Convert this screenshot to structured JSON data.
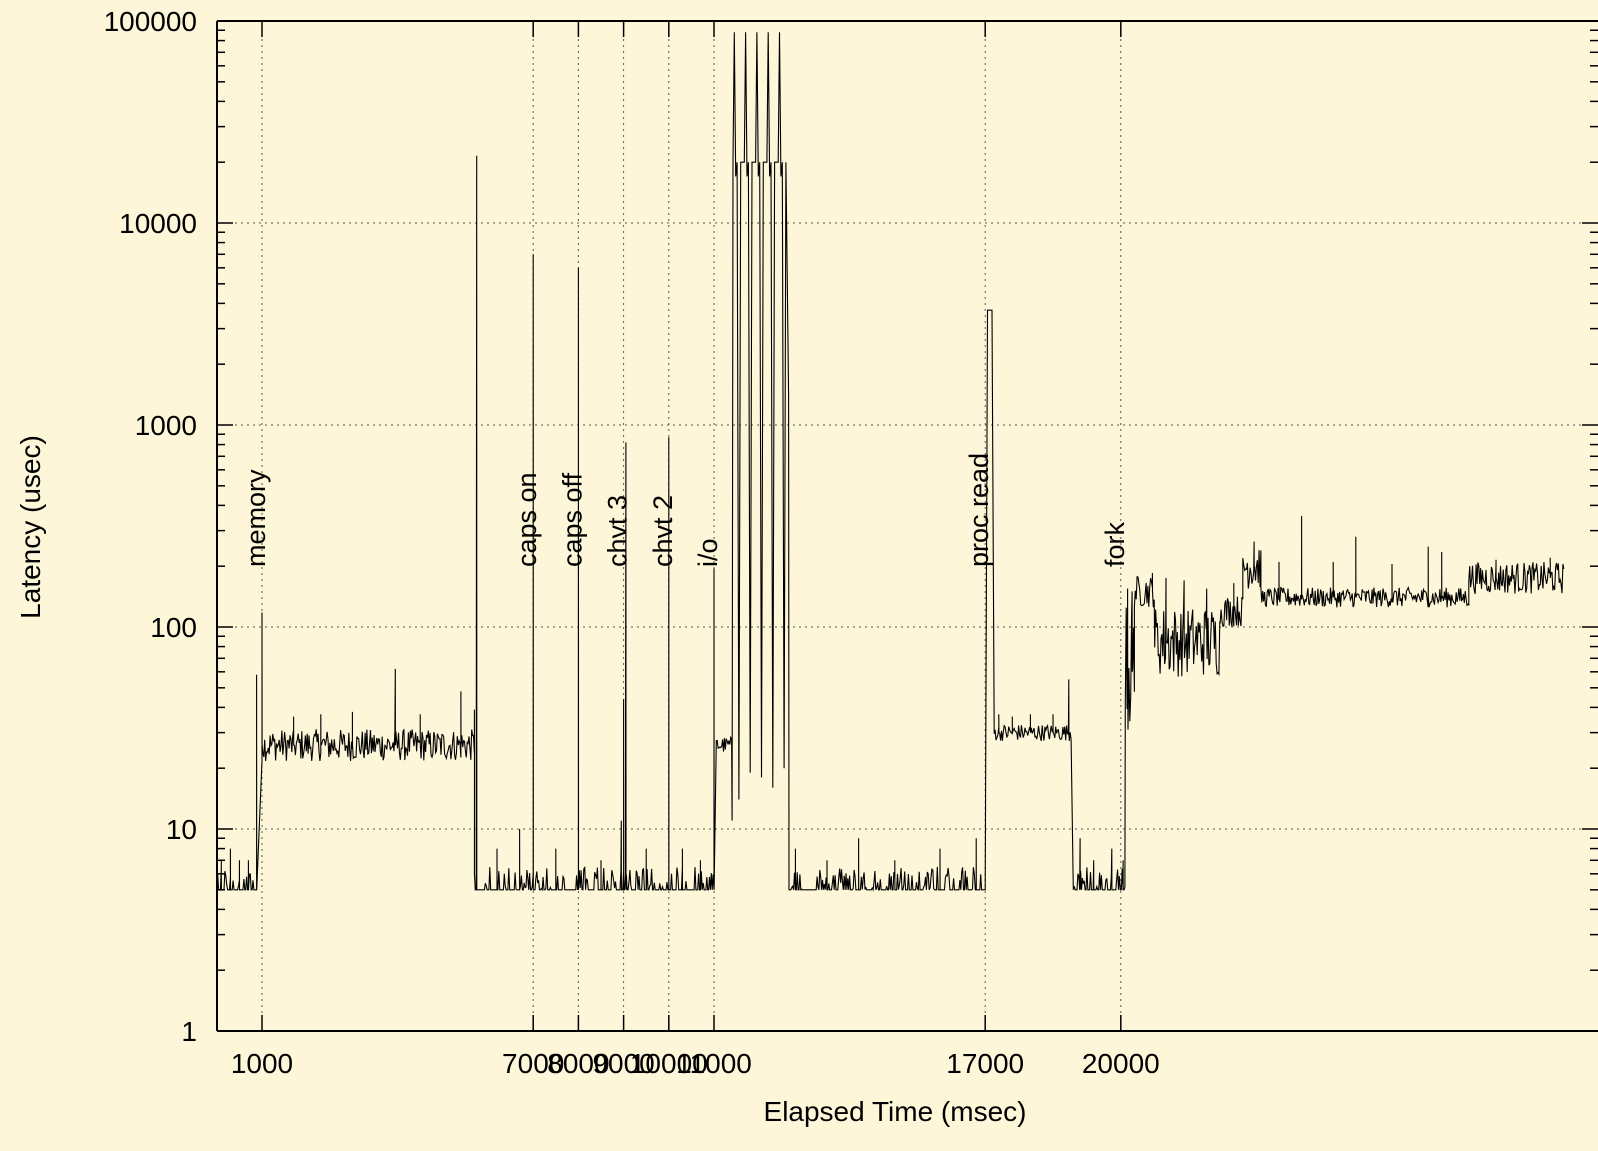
{
  "chart_data": {
    "type": "line",
    "title": "",
    "xlabel": "Elapsed Time (msec)",
    "ylabel": "Latency (usec)",
    "yscale": "log",
    "ylim": [
      1,
      100000
    ],
    "xlim": [
      0,
      29800
    ],
    "grid": true,
    "x_ticks": [
      {
        "value": 1000,
        "label": "1000"
      },
      {
        "value": 7000,
        "label": "7000"
      },
      {
        "value": 8000,
        "label": "8000"
      },
      {
        "value": 9000,
        "label": "9000"
      },
      {
        "value": 10000,
        "label": "10000"
      },
      {
        "value": 11000,
        "label": "11000"
      },
      {
        "value": 17000,
        "label": "17000"
      },
      {
        "value": 20000,
        "label": "20000"
      }
    ],
    "y_ticks": [
      {
        "value": 1,
        "label": "1"
      },
      {
        "value": 10,
        "label": "10"
      },
      {
        "value": 100,
        "label": "100"
      },
      {
        "value": 1000,
        "label": "1000"
      },
      {
        "value": 10000,
        "label": "10000"
      },
      {
        "value": 100000,
        "label": "100000"
      }
    ],
    "annotations": [
      {
        "x": 1000,
        "text": "memory"
      },
      {
        "x": 7000,
        "text": "caps on"
      },
      {
        "x": 8000,
        "text": "caps off"
      },
      {
        "x": 9000,
        "text": "chvt 3"
      },
      {
        "x": 10000,
        "text": "chvt 2"
      },
      {
        "x": 11000,
        "text": "i/o"
      },
      {
        "x": 17000,
        "text": "proc read"
      },
      {
        "x": 20000,
        "text": "fork"
      }
    ],
    "segments": [
      {
        "x_start": 0,
        "x_end": 880,
        "baseline": 5,
        "noise": 1.3,
        "spikes": [
          {
            "x": 100,
            "y": 7
          },
          {
            "x": 300,
            "y": 8
          },
          {
            "x": 500,
            "y": 7
          },
          {
            "x": 700,
            "y": 7
          },
          {
            "x": 880,
            "y": 58
          }
        ]
      },
      {
        "x_start": 1000,
        "x_end": 5700,
        "baseline": 26,
        "noise": 1.2,
        "spikes": [
          {
            "x": 1000,
            "y": 118
          },
          {
            "x": 1700,
            "y": 36
          },
          {
            "x": 2300,
            "y": 37
          },
          {
            "x": 3000,
            "y": 38
          },
          {
            "x": 3950,
            "y": 62
          },
          {
            "x": 4500,
            "y": 37
          },
          {
            "x": 5400,
            "y": 48
          },
          {
            "x": 5700,
            "y": 39
          }
        ]
      },
      {
        "x_start": 5700,
        "x_end": 11000,
        "baseline": 5,
        "noise": 1.3,
        "spikes": [
          {
            "x": 5750,
            "y": 21500
          },
          {
            "x": 6200,
            "y": 8
          },
          {
            "x": 6700,
            "y": 10
          },
          {
            "x": 7000,
            "y": 7000
          },
          {
            "x": 7500,
            "y": 8
          },
          {
            "x": 8000,
            "y": 6000
          },
          {
            "x": 8500,
            "y": 7
          },
          {
            "x": 8950,
            "y": 11
          },
          {
            "x": 9000,
            "y": 44
          },
          {
            "x": 9050,
            "y": 820
          },
          {
            "x": 9500,
            "y": 8
          },
          {
            "x": 10000,
            "y": 870
          },
          {
            "x": 10300,
            "y": 8
          },
          {
            "x": 10700,
            "y": 7
          },
          {
            "x": 11000,
            "y": 195
          }
        ]
      },
      {
        "x_start": 11050,
        "x_end": 11400,
        "baseline": 26,
        "noise": 1.1,
        "spikes": []
      },
      {
        "x_start": 12700,
        "x_end": 17000,
        "baseline": 5,
        "noise": 1.3,
        "spikes": [
          {
            "x": 12800,
            "y": 8
          },
          {
            "x": 13500,
            "y": 7
          },
          {
            "x": 14200,
            "y": 9
          },
          {
            "x": 15000,
            "y": 7
          },
          {
            "x": 16000,
            "y": 8
          },
          {
            "x": 16800,
            "y": 9
          }
        ]
      },
      {
        "x_start": 17200,
        "x_end": 18900,
        "baseline": 30,
        "noise": 1.1,
        "spikes": [
          {
            "x": 17300,
            "y": 37
          },
          {
            "x": 17600,
            "y": 36
          },
          {
            "x": 18000,
            "y": 37
          },
          {
            "x": 18500,
            "y": 37
          },
          {
            "x": 18850,
            "y": 55
          }
        ]
      },
      {
        "x_start": 18950,
        "x_end": 20100,
        "baseline": 5,
        "noise": 1.3,
        "spikes": [
          {
            "x": 19100,
            "y": 9
          },
          {
            "x": 19400,
            "y": 7
          },
          {
            "x": 19800,
            "y": 8
          },
          {
            "x": 20050,
            "y": 7
          }
        ]
      },
      {
        "x_start": 20100,
        "x_end": 20300,
        "baseline": 60,
        "noise": 2.2,
        "spikes": [
          {
            "x": 20150,
            "y": 155
          },
          {
            "x": 20250,
            "y": 150
          }
        ]
      },
      {
        "x_start": 20300,
        "x_end": 20750,
        "baseline": 150,
        "noise": 1.2,
        "spikes": [
          {
            "x": 20700,
            "y": 185
          }
        ]
      },
      {
        "x_start": 20750,
        "x_end": 22200,
        "baseline": 85,
        "noise": 1.5,
        "spikes": [
          {
            "x": 21000,
            "y": 175
          },
          {
            "x": 21400,
            "y": 170
          },
          {
            "x": 21900,
            "y": 155
          }
        ]
      },
      {
        "x_start": 22200,
        "x_end": 22700,
        "baseline": 120,
        "noise": 1.2,
        "spikes": [
          {
            "x": 22500,
            "y": 165
          }
        ]
      },
      {
        "x_start": 22700,
        "x_end": 23100,
        "baseline": 200,
        "noise": 1.3,
        "spikes": [
          {
            "x": 22950,
            "y": 265
          }
        ]
      },
      {
        "x_start": 23100,
        "x_end": 27700,
        "baseline": 140,
        "noise": 1.12,
        "spikes": [
          {
            "x": 23500,
            "y": 210
          },
          {
            "x": 24000,
            "y": 355
          },
          {
            "x": 24700,
            "y": 210
          },
          {
            "x": 25200,
            "y": 280
          },
          {
            "x": 26000,
            "y": 205
          },
          {
            "x": 26800,
            "y": 250
          },
          {
            "x": 27100,
            "y": 235
          }
        ]
      },
      {
        "x_start": 27700,
        "x_end": 29800,
        "baseline": 175,
        "noise": 1.2,
        "spikes": [
          {
            "x": 28300,
            "y": 215
          },
          {
            "x": 29500,
            "y": 220
          }
        ]
      }
    ],
    "burst": {
      "x_start": 11400,
      "x_end": 12650,
      "peaks": [
        {
          "x": 11450,
          "y": 88000
        },
        {
          "x": 11700,
          "y": 88000
        },
        {
          "x": 11950,
          "y": 88000
        },
        {
          "x": 12200,
          "y": 88000
        },
        {
          "x": 12450,
          "y": 88000
        }
      ],
      "plateau": 20000,
      "troughs": [
        11,
        14,
        19,
        18,
        16,
        20
      ]
    },
    "plateaus": [
      {
        "x_start": 17050,
        "x_end": 17150,
        "y": 3700
      }
    ]
  }
}
